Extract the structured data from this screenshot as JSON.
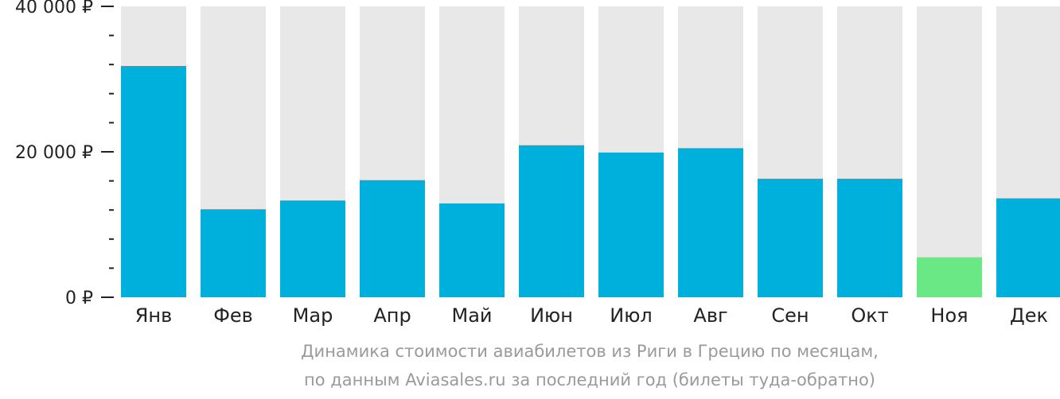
{
  "chart_data": {
    "type": "bar",
    "categories": [
      "Янв",
      "Фев",
      "Мар",
      "Апр",
      "Май",
      "Июн",
      "Июл",
      "Авг",
      "Сен",
      "Окт",
      "Ноя",
      "Дек"
    ],
    "values": [
      31800,
      12100,
      13300,
      16100,
      12900,
      20900,
      19900,
      20500,
      16300,
      16300,
      5500,
      13600
    ],
    "highlight_index": 10,
    "ylim": [
      0,
      40000
    ],
    "y_major_ticks": [
      0,
      20000,
      40000
    ],
    "y_tick_labels": [
      "0 ₽",
      "20 000 ₽",
      "40 000 ₽"
    ],
    "y_minor_step": 4000,
    "grid": false,
    "colors": {
      "bar": "#00b0dc",
      "highlight": "#6be886",
      "background_bar": "#e8e8e8",
      "axis": "#222222"
    }
  },
  "caption": {
    "line1": "Динамика стоимости авиабилетов из Риги в Грецию по месяцам,",
    "line2": "по данным Aviasales.ru за последний год (билеты туда-обратно)"
  }
}
